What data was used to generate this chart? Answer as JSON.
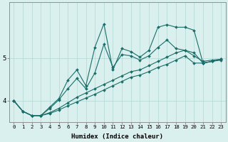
{
  "title": "",
  "xlabel": "Humidex (Indice chaleur)",
  "ylabel": "",
  "background_color": "#daf0ee",
  "grid_color": "#b8dbd8",
  "line_color": "#1a6e6a",
  "xlim": [
    -0.5,
    23.5
  ],
  "ylim": [
    3.5,
    6.3
  ],
  "yticks": [
    4,
    5
  ],
  "xticks": [
    0,
    1,
    2,
    3,
    4,
    5,
    6,
    7,
    8,
    9,
    10,
    11,
    12,
    13,
    14,
    15,
    16,
    17,
    18,
    19,
    20,
    21,
    22,
    23
  ],
  "series": [
    [
      4.0,
      3.75,
      3.65,
      3.65,
      3.7,
      3.78,
      3.88,
      3.97,
      4.06,
      4.15,
      4.25,
      4.35,
      4.45,
      4.55,
      4.6,
      4.68,
      4.78,
      4.85,
      4.95,
      5.05,
      4.88,
      4.88,
      4.92,
      4.95
    ],
    [
      4.0,
      3.75,
      3.65,
      3.65,
      3.72,
      3.82,
      3.95,
      4.08,
      4.18,
      4.28,
      4.38,
      4.48,
      4.58,
      4.68,
      4.72,
      4.82,
      4.92,
      5.02,
      5.12,
      5.18,
      5.05,
      4.92,
      4.95,
      4.97
    ],
    [
      4.0,
      3.75,
      3.65,
      3.65,
      3.85,
      4.05,
      4.48,
      4.72,
      4.35,
      5.25,
      5.8,
      4.72,
      5.22,
      5.15,
      5.02,
      5.18,
      5.72,
      5.78,
      5.72,
      5.72,
      5.65,
      4.88,
      4.92,
      4.97
    ],
    [
      4.0,
      3.75,
      3.65,
      3.65,
      3.82,
      4.02,
      4.28,
      4.52,
      4.28,
      4.65,
      5.32,
      4.78,
      5.08,
      5.05,
      4.95,
      5.05,
      5.25,
      5.42,
      5.22,
      5.18,
      5.12,
      4.88,
      4.92,
      4.97
    ]
  ]
}
